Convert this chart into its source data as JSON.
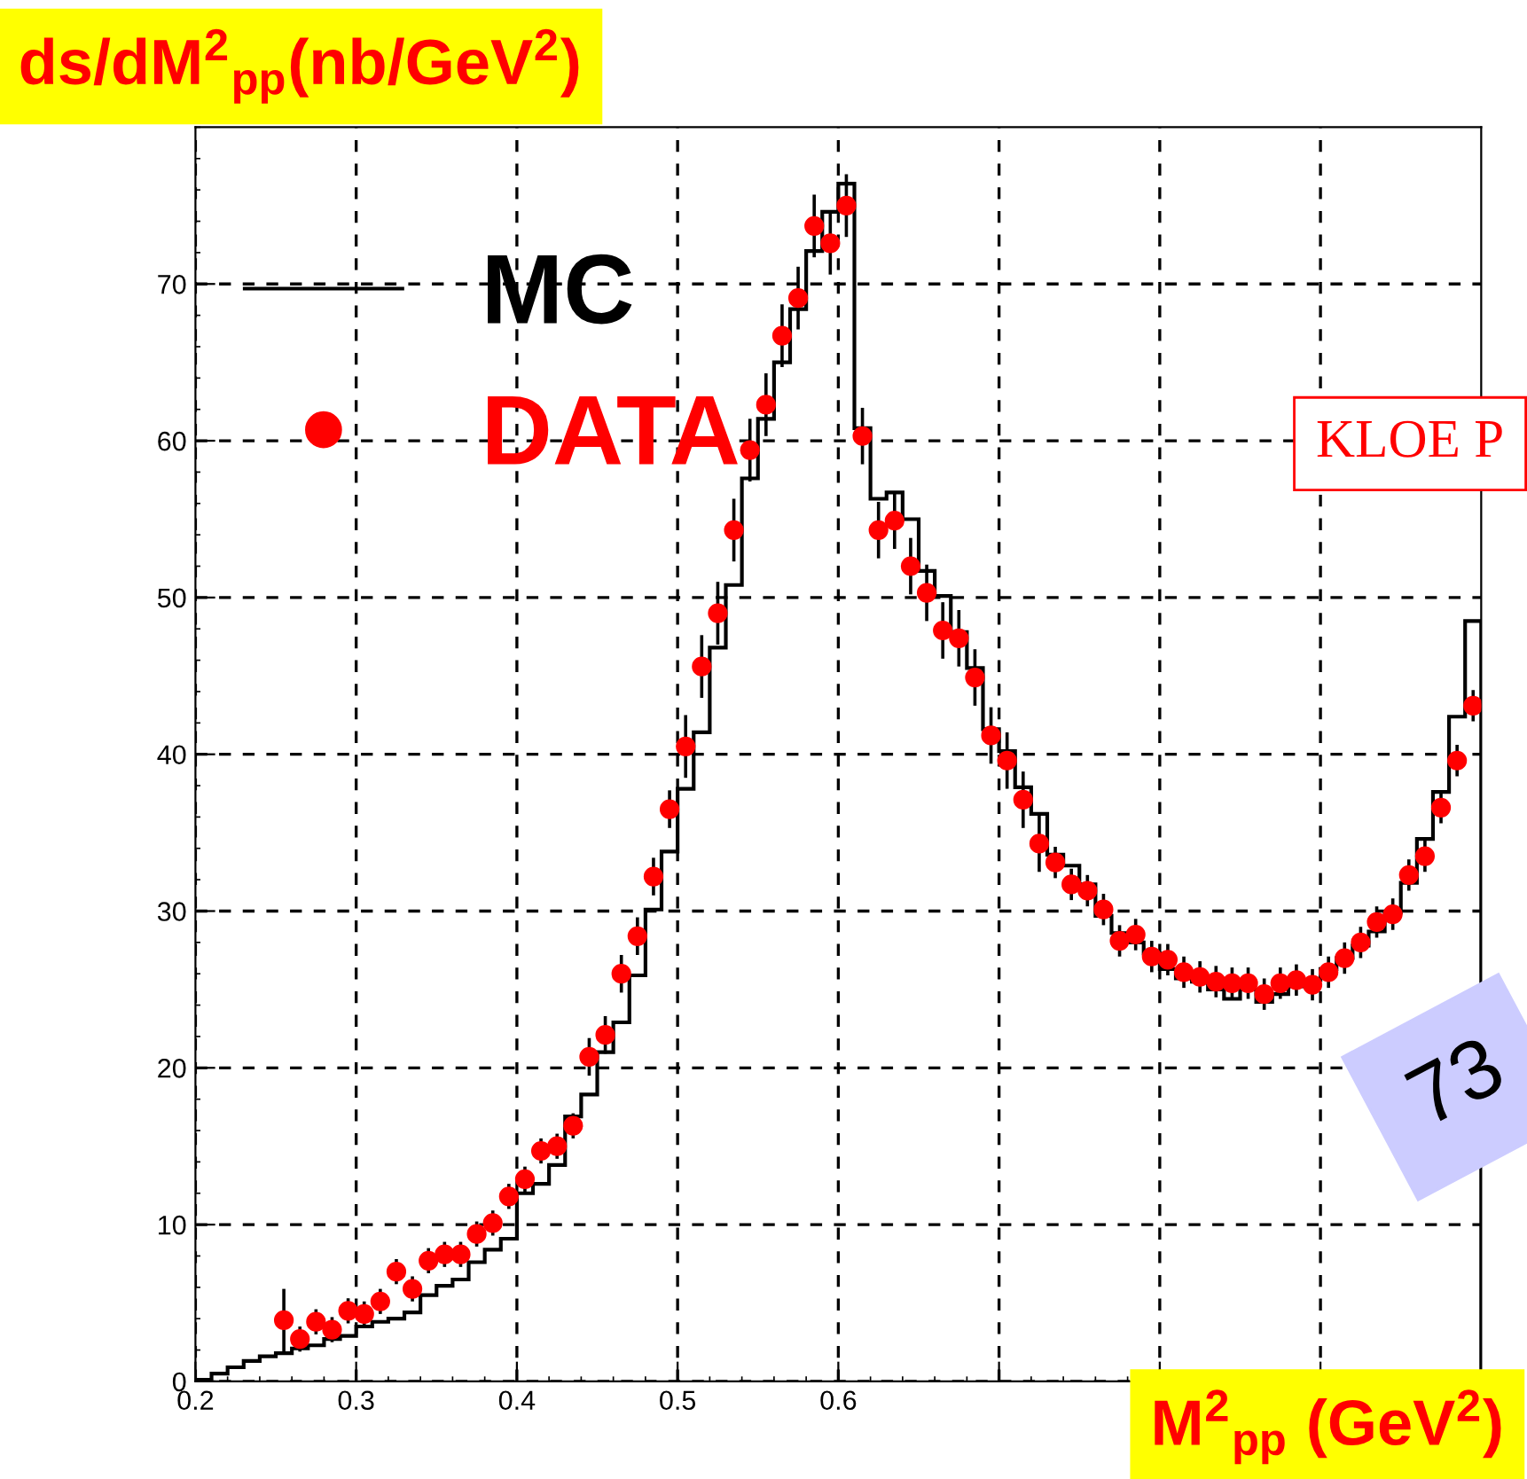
{
  "chart_data": {
    "type": "scatter",
    "title": "ds/dM$^{2}$$_{pp}$(nb/GeV$^{2}$)",
    "xlabel": "M$^{2}$$_{pp}$ (GeV$^{2}$)",
    "xlim": [
      0.2,
      1.0
    ],
    "ylim": [
      0,
      80
    ],
    "xticks": [
      0.2,
      0.3,
      0.4,
      0.5,
      0.6,
      {
        "value": 0.7,
        "label": null
      },
      {
        "value": 0.8,
        "label": null
      },
      {
        "value": 0.9,
        "label": null
      }
    ],
    "yticks": [
      0,
      10,
      20,
      30,
      40,
      50,
      60,
      70
    ],
    "grid": true,
    "legend": "top left",
    "annotations": [
      "KLOE P",
      "73"
    ],
    "series": [
      {
        "name": "MC",
        "type": "histogram",
        "color": "#000000",
        "bins": [
          0.2,
          0.21,
          0.22,
          0.23,
          0.24,
          0.25,
          0.26,
          0.27,
          0.28,
          0.29,
          0.3,
          0.31,
          0.32,
          0.33,
          0.34,
          0.35,
          0.36,
          0.37,
          0.38,
          0.39,
          0.4,
          0.41,
          0.42,
          0.43,
          0.44,
          0.45,
          0.46,
          0.47,
          0.48,
          0.49,
          0.5,
          0.51,
          0.52,
          0.53,
          0.54,
          0.55,
          0.56,
          0.57,
          0.58,
          0.59,
          0.6,
          0.61,
          0.62,
          0.63,
          0.64,
          0.65,
          0.66,
          0.67,
          0.68,
          0.69,
          0.7,
          0.71,
          0.72,
          0.73,
          0.74,
          0.75,
          0.76,
          0.77,
          0.78,
          0.79,
          0.8,
          0.81,
          0.82,
          0.83,
          0.84,
          0.85,
          0.86,
          0.87,
          0.88,
          0.89,
          0.9,
          0.91,
          0.92,
          0.93,
          0.94,
          0.95,
          0.96,
          0.97,
          0.98,
          0.99,
          1.0
        ],
        "values": [
          0.1,
          0.5,
          0.9,
          1.3,
          1.6,
          1.8,
          2.1,
          2.3,
          2.7,
          2.9,
          3.5,
          3.8,
          4.0,
          4.4,
          5.5,
          6.1,
          6.5,
          7.6,
          8.4,
          9.1,
          12.0,
          12.6,
          13.8,
          16.9,
          18.3,
          21.0,
          22.9,
          25.9,
          30.1,
          33.8,
          37.8,
          41.4,
          46.8,
          50.8,
          57.6,
          61.4,
          65.0,
          68.4,
          72.1,
          74.6,
          76.4,
          60.8,
          56.3,
          56.7,
          55.0,
          51.7,
          50.1,
          47.8,
          45.5,
          41.6,
          40.2,
          37.9,
          36.2,
          33.6,
          32.9,
          31.7,
          29.7,
          28.6,
          28.0,
          27.3,
          26.3,
          25.7,
          25.5,
          25.0,
          24.4,
          25.0,
          24.2,
          24.7,
          25.2,
          25.6,
          26.3,
          27.0,
          27.8,
          28.7,
          29.9,
          31.8,
          34.6,
          37.6,
          42.4,
          48.5
        ]
      },
      {
        "name": "DATA",
        "color": "#ff0000",
        "marker": "circle",
        "x": [
          0.255,
          0.265,
          0.275,
          0.285,
          0.295,
          0.305,
          0.315,
          0.325,
          0.335,
          0.345,
          0.355,
          0.365,
          0.375,
          0.385,
          0.395,
          0.405,
          0.415,
          0.425,
          0.435,
          0.445,
          0.455,
          0.465,
          0.475,
          0.485,
          0.495,
          0.505,
          0.515,
          0.525,
          0.535,
          0.545,
          0.555,
          0.565,
          0.575,
          0.585,
          0.595,
          0.605,
          0.615,
          0.625,
          0.635,
          0.645,
          0.655,
          0.665,
          0.675,
          0.685,
          0.695,
          0.705,
          0.715,
          0.725,
          0.735,
          0.745,
          0.755,
          0.765,
          0.775,
          0.785,
          0.795,
          0.805,
          0.815,
          0.825,
          0.835,
          0.845,
          0.855,
          0.865,
          0.875,
          0.885,
          0.895,
          0.905,
          0.915,
          0.925,
          0.935,
          0.945,
          0.955,
          0.965,
          0.975,
          0.985,
          0.995
        ],
        "values": [
          3.9,
          2.7,
          3.8,
          3.3,
          4.5,
          4.3,
          5.1,
          7.0,
          5.9,
          7.7,
          8.1,
          8.1,
          9.4,
          10.1,
          11.8,
          12.9,
          14.7,
          15.0,
          16.3,
          20.7,
          22.1,
          26.0,
          28.4,
          32.2,
          36.5,
          40.5,
          45.6,
          49.0,
          54.3,
          59.4,
          62.3,
          66.7,
          69.1,
          73.7,
          72.6,
          75.0,
          60.3,
          54.3,
          54.9,
          52.0,
          50.3,
          47.9,
          47.4,
          44.9,
          41.2,
          39.6,
          37.1,
          34.3,
          33.1,
          31.7,
          31.3,
          30.1,
          28.1,
          28.5,
          27.1,
          26.9,
          26.1,
          25.8,
          25.5,
          25.4,
          25.4,
          24.7,
          25.4,
          25.6,
          25.3,
          26.1,
          27.0,
          28.0,
          29.3,
          29.8,
          32.3,
          33.5,
          36.6,
          39.6,
          43.1
        ],
        "errors": [
          2.0,
          0.8,
          0.8,
          0.8,
          0.8,
          0.8,
          0.8,
          0.8,
          0.8,
          0.8,
          0.8,
          0.8,
          0.8,
          0.8,
          0.8,
          0.8,
          0.8,
          0.8,
          0.8,
          1.2,
          1.2,
          1.2,
          1.2,
          1.2,
          1.2,
          2.0,
          2.0,
          2.0,
          2.0,
          2.0,
          2.0,
          2.0,
          2.0,
          2.0,
          2.0,
          2.0,
          1.8,
          1.8,
          1.8,
          1.8,
          1.8,
          1.8,
          1.8,
          1.8,
          1.8,
          1.8,
          1.8,
          1.8,
          1.0,
          1.0,
          1.0,
          1.0,
          1.0,
          1.0,
          1.0,
          1.0,
          1.0,
          1.0,
          1.0,
          1.0,
          1.0,
          1.0,
          1.0,
          1.0,
          1.0,
          1.0,
          1.0,
          1.0,
          1.0,
          1.0,
          1.0,
          1.0,
          1.0,
          1.0,
          1.0
        ]
      }
    ]
  }
}
